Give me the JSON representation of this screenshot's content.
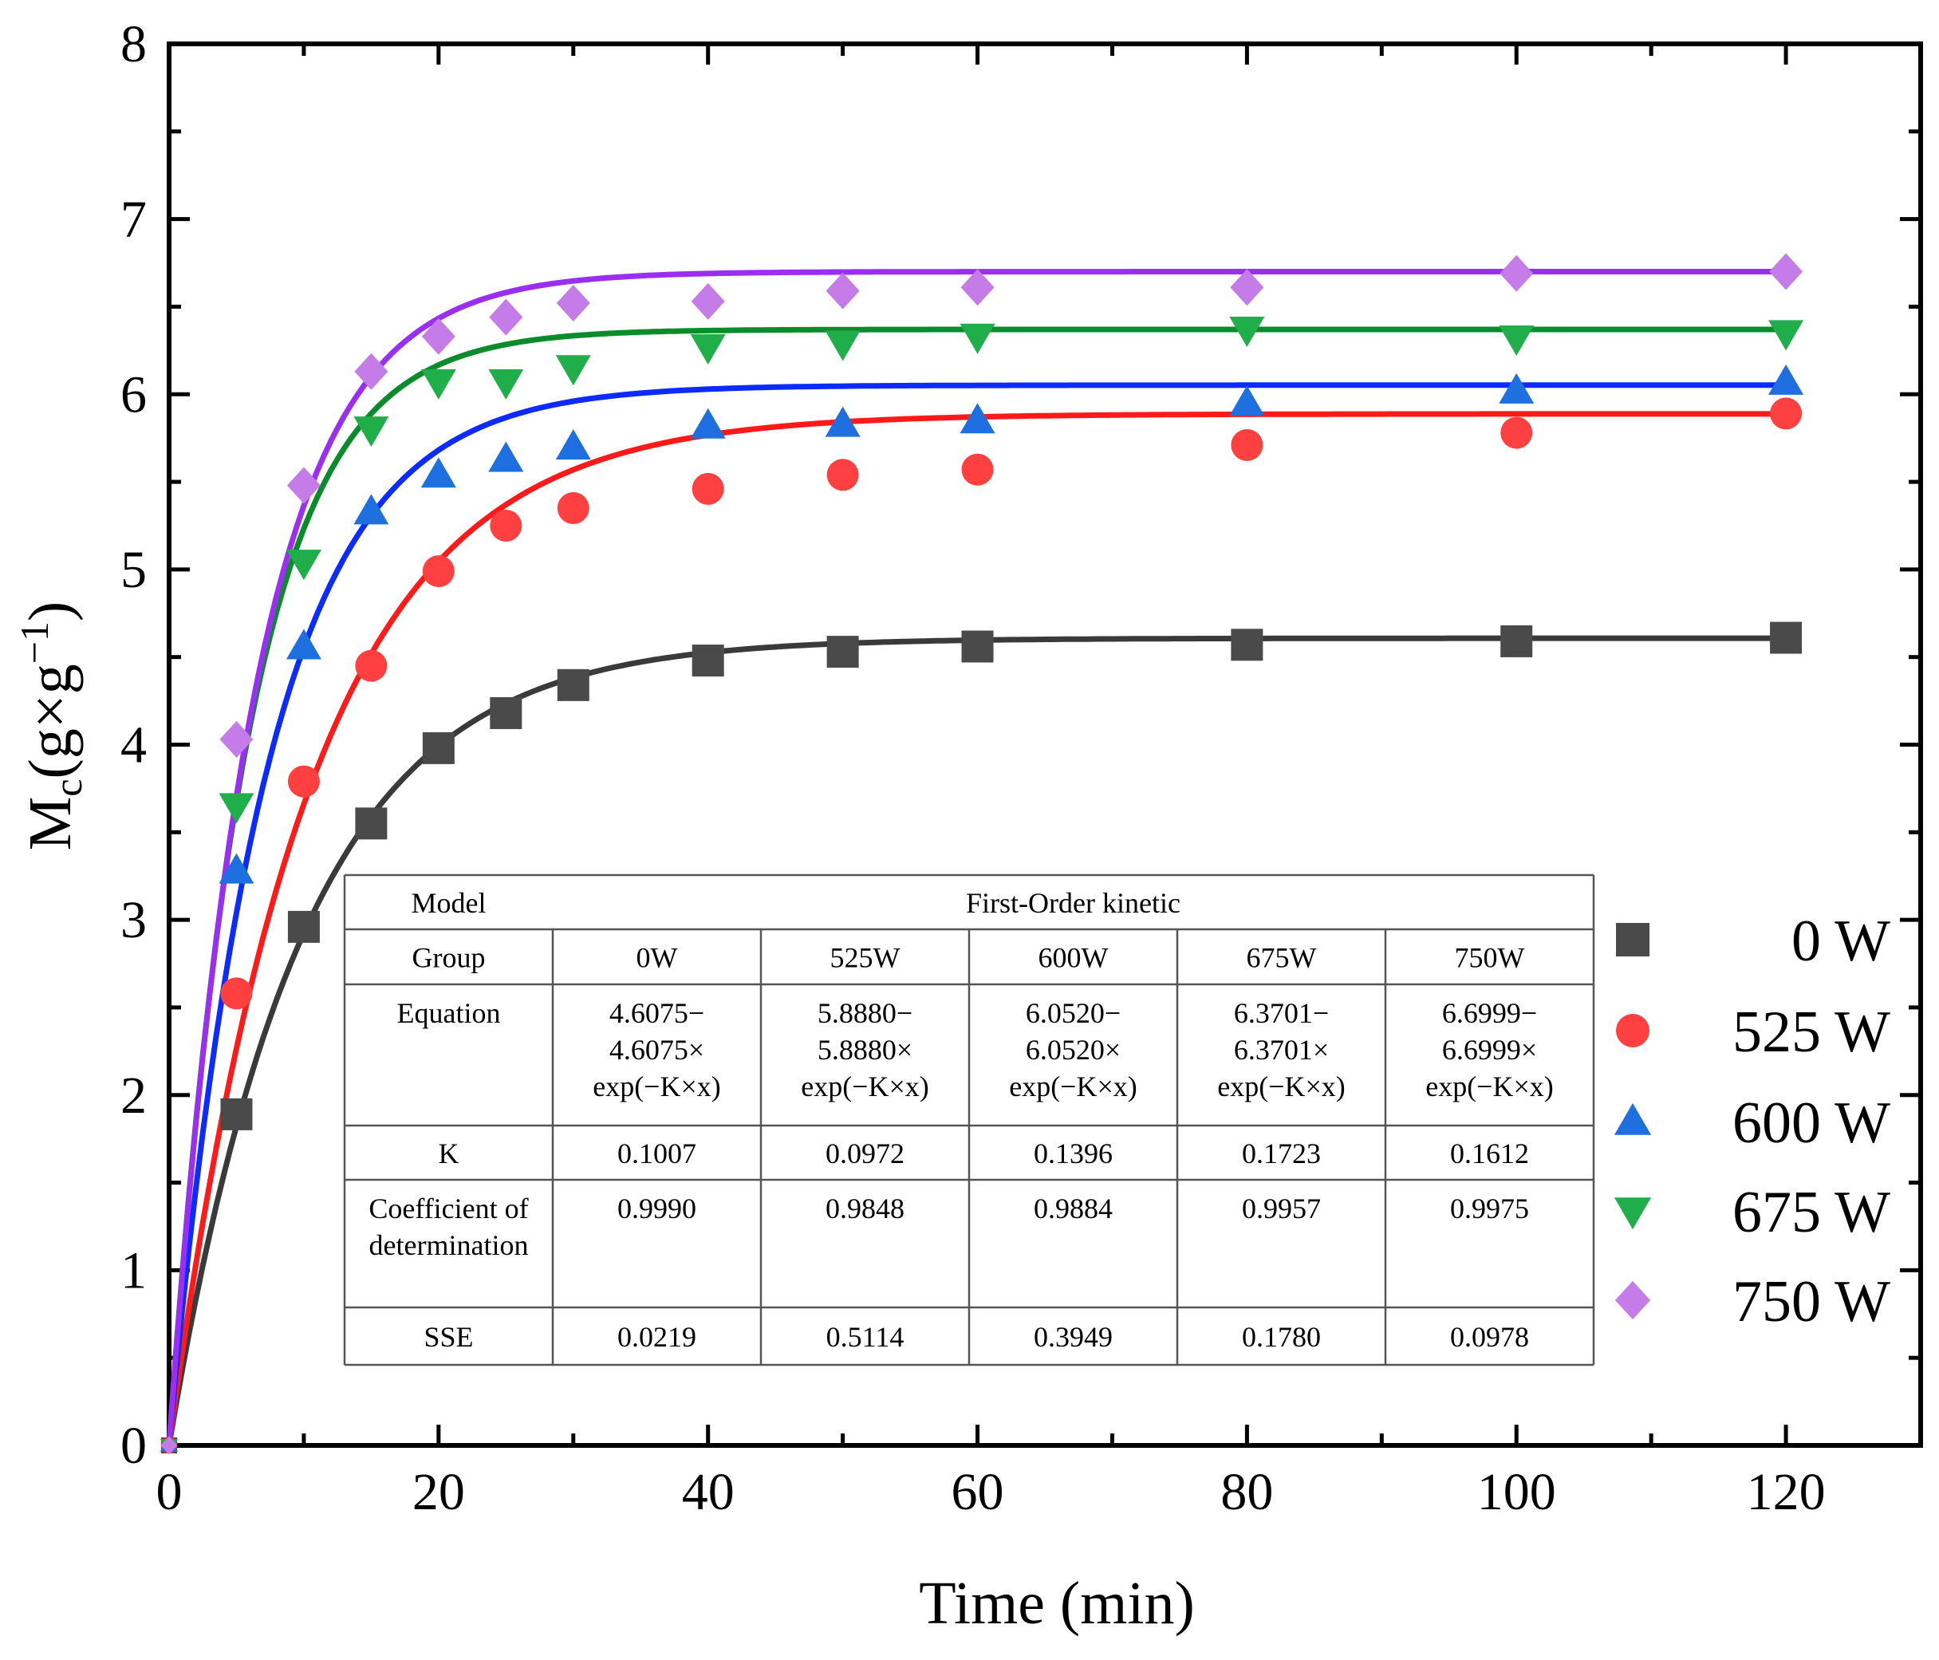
{
  "chart_data": {
    "type": "scatter",
    "xlabel": "Time (min)",
    "ylabel_main": "M",
    "ylabel_sub": "c",
    "ylabel_rest": "(g×g",
    "ylabel_sup": "−1",
    "ylabel_close": ")",
    "xlim": [
      0,
      130
    ],
    "ylim": [
      0,
      8
    ],
    "xticks": [
      0,
      20,
      40,
      60,
      80,
      100,
      120
    ],
    "yticks": [
      0,
      1,
      2,
      3,
      4,
      5,
      6,
      7,
      8
    ],
    "x": [
      0,
      5,
      10,
      15,
      20,
      25,
      30,
      40,
      50,
      60,
      80,
      100,
      120
    ],
    "series": [
      {
        "name": "0 W",
        "marker": "square",
        "color": "#4a4a4a",
        "curve_color": "#3a3a3a",
        "fit": {
          "a": 4.6075,
          "k": 0.1007
        },
        "values": [
          0,
          1.89,
          2.96,
          3.55,
          3.98,
          4.18,
          4.34,
          4.48,
          4.53,
          4.56,
          4.57,
          4.59,
          4.61
        ]
      },
      {
        "name": "525 W",
        "marker": "circle",
        "color": "#ff4040",
        "curve_color": "#ff1a1a",
        "fit": {
          "a": 5.888,
          "k": 0.0972
        },
        "values": [
          0,
          2.58,
          3.79,
          4.45,
          4.99,
          5.25,
          5.35,
          5.46,
          5.54,
          5.57,
          5.71,
          5.78,
          5.89
        ]
      },
      {
        "name": "600 W",
        "marker": "triangle-up",
        "color": "#1e6fe0",
        "curve_color": "#0b2bff",
        "fit": {
          "a": 6.052,
          "k": 0.1396
        },
        "values": [
          0,
          3.28,
          4.56,
          5.33,
          5.54,
          5.63,
          5.7,
          5.82,
          5.83,
          5.85,
          5.95,
          6.02,
          6.07
        ]
      },
      {
        "name": "675 W",
        "marker": "triangle-down",
        "color": "#1fae4a",
        "curve_color": "#0a8c2a",
        "fit": {
          "a": 6.3701,
          "k": 0.1723
        },
        "values": [
          0,
          3.65,
          5.04,
          5.8,
          6.07,
          6.07,
          6.15,
          6.27,
          6.29,
          6.33,
          6.37,
          6.32,
          6.35
        ]
      },
      {
        "name": "750 W",
        "marker": "diamond",
        "color": "#c57be8",
        "curve_color": "#9a2ff2",
        "fit": {
          "a": 6.6999,
          "k": 0.1612
        },
        "values": [
          0,
          4.03,
          5.48,
          6.13,
          6.33,
          6.44,
          6.52,
          6.53,
          6.59,
          6.61,
          6.61,
          6.69,
          6.7
        ]
      }
    ],
    "legend_position": "right",
    "table": {
      "rows": [
        [
          "Model",
          "First-Order kinetic"
        ],
        [
          "Group",
          "0W",
          "525W",
          "600W",
          "675W",
          "750W"
        ],
        [
          "Equation",
          "4.6075−|4.6075×|exp(−K×x)",
          "5.8880−|5.8880×|exp(−K×x)",
          "6.0520−|6.0520×|exp(−K×x)",
          "6.3701−|6.3701×|exp(−K×x)",
          "6.6999−|6.6999×|exp(−K×x)"
        ],
        [
          "K",
          "0.1007",
          "0.0972",
          "0.1396",
          "0.1723",
          "0.1612"
        ],
        [
          "Coefficient of|determination",
          "0.9990",
          "0.9848",
          "0.9884",
          "0.9957",
          "0.9975"
        ],
        [
          "SSE",
          "0.0219",
          "0.5114",
          "0.3949",
          "0.1780",
          "0.0978"
        ]
      ]
    }
  }
}
